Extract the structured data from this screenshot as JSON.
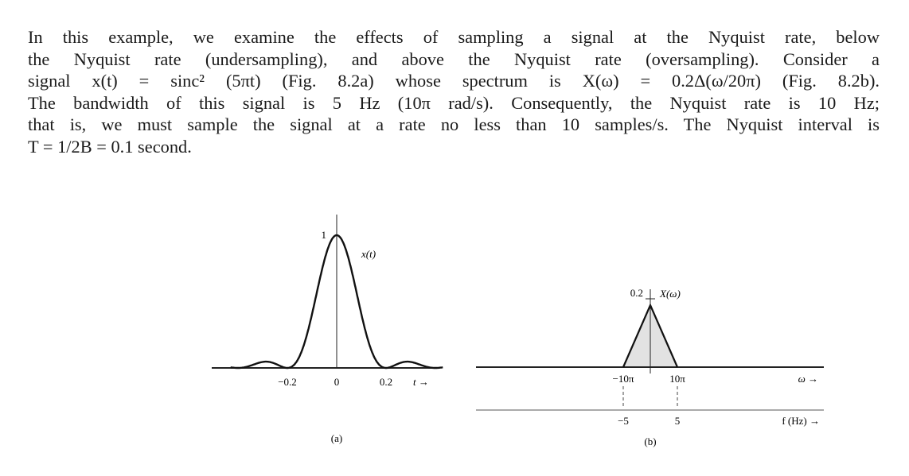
{
  "paragraph": {
    "lines": [
      "In this example, we examine the effects of sampling a signal at the Nyquist rate, below",
      "the Nyquist rate (undersampling), and above the Nyquist rate (oversampling). Consider a",
      "signal x(t) = sinc² (5πt) (Fig. 8.2a) whose spectrum is X(ω) = 0.2Δ(ω/20π) (Fig. 8.2b).",
      "The bandwidth of this signal is 5 Hz (10π rad/s). Consequently, the Nyquist rate is 10 Hz;",
      "that is, we must sample the signal at a rate no less than 10 samples/s. The Nyquist interval is",
      "T = 1/2B = 0.1 second."
    ]
  },
  "figure_a": {
    "peak_label": "1",
    "curve_label": "x(t)",
    "tick_labels": [
      "−0.2",
      "0",
      "0.2"
    ],
    "axis_label": "t →",
    "caption": "(a)"
  },
  "figure_b": {
    "peak_label": "0.2",
    "curve_label": "X(ω)",
    "omega_ticks": [
      "−10π",
      "10π"
    ],
    "omega_axis_label": "ω →",
    "hz_ticks": [
      "−5",
      "5"
    ],
    "hz_axis_label": "f (Hz) →",
    "caption": "(b)"
  }
}
